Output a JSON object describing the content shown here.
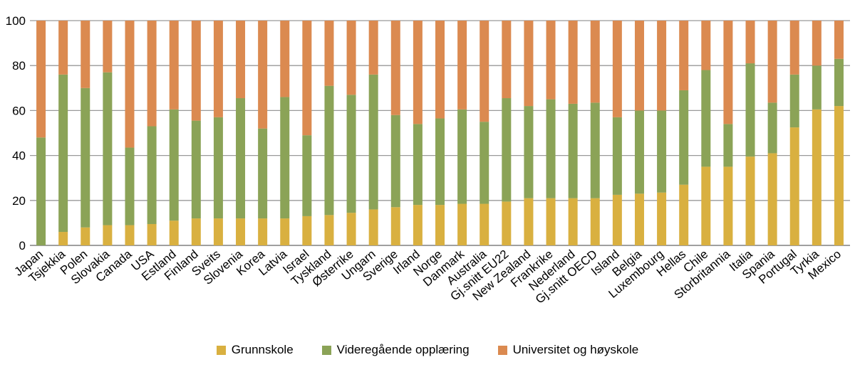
{
  "chart_data": {
    "type": "bar",
    "stacked": true,
    "categories": [
      "Japan",
      "Tsjekkia",
      "Polen",
      "Slovakia",
      "Canada",
      "USA",
      "Estland",
      "Finland",
      "Sveits",
      "Slovenia",
      "Korea",
      "Latvia",
      "Israel",
      "Tyskland",
      "Østerrike",
      "Ungarn",
      "Sverige",
      "Irland",
      "Norge",
      "Danmark",
      "Australia",
      "Gj.snitt EU22",
      "New Zealand",
      "Frankrike",
      "Nederland",
      "Gj.snitt OECD",
      "Island",
      "Belgia",
      "Luxembourg",
      "Hellas",
      "Chile",
      "Storbritannia",
      "Italia",
      "Spania",
      "Portugal",
      "Tyrkia",
      "Mexico"
    ],
    "series": [
      {
        "name": "Grunnskole",
        "color": "#d9b040",
        "values": [
          0,
          6,
          8,
          9,
          9,
          9.5,
          11,
          12,
          12,
          12,
          12,
          12,
          13,
          13.5,
          14.5,
          16,
          17,
          18,
          18,
          18.5,
          18.5,
          19.5,
          21,
          21,
          21,
          21,
          22.5,
          23,
          23.5,
          27,
          35,
          35,
          39.5,
          41,
          52.5,
          60.5,
          62
        ]
      },
      {
        "name": "Videregående opplæring",
        "color": "#8ba357",
        "values": [
          48,
          70,
          62,
          68,
          34.5,
          43.5,
          49.5,
          43.5,
          45,
          53.5,
          40,
          54,
          36,
          57.5,
          52.5,
          60,
          41,
          36,
          38.5,
          42,
          36.5,
          46,
          41,
          44,
          42,
          42.5,
          34.5,
          37,
          36.5,
          42,
          43,
          19,
          41.5,
          22.5,
          23.5,
          19.5,
          21
        ]
      },
      {
        "name": "Universitet og høyskole",
        "color": "#db8a50",
        "values": [
          52,
          24,
          30,
          23,
          56.5,
          47,
          39.5,
          44.5,
          43,
          34.5,
          48,
          34,
          51,
          29,
          33,
          24,
          42,
          46,
          43.5,
          39.5,
          45,
          34.5,
          38,
          35,
          37,
          36.5,
          43,
          40,
          40,
          31,
          22,
          46,
          19,
          36.5,
          24,
          20,
          17
        ]
      }
    ],
    "ylim": [
      0,
      100
    ],
    "yticks": [
      "0",
      "20",
      "40",
      "60",
      "80",
      "100"
    ],
    "grid": true,
    "legend_position": "bottom"
  }
}
